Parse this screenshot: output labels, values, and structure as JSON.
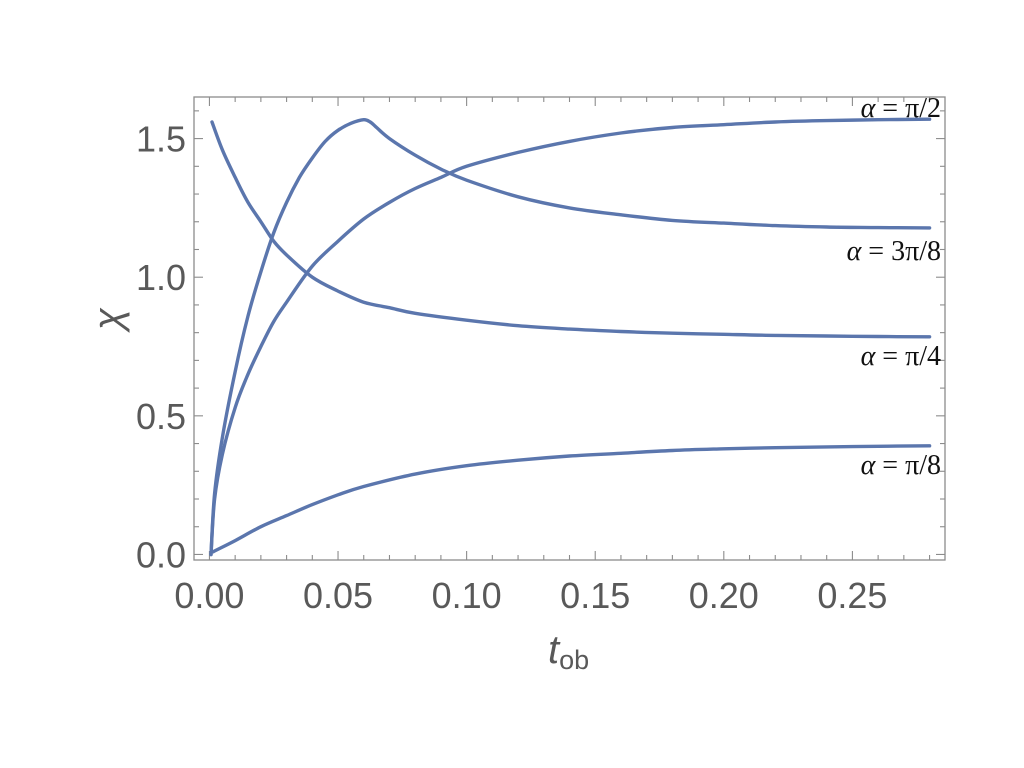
{
  "chart_data": {
    "type": "line",
    "xlabel": "t",
    "xlabel_sub": "ob",
    "ylabel": "χ",
    "xlim": [
      -0.006,
      0.286
    ],
    "ylim": [
      -0.02,
      1.65
    ],
    "x_ticks": [
      0.0,
      0.05,
      0.1,
      0.15,
      0.2,
      0.25
    ],
    "x_tick_labels": [
      "0.00",
      "0.05",
      "0.10",
      "0.15",
      "0.20",
      "0.25"
    ],
    "y_ticks": [
      0.0,
      0.5,
      1.0,
      1.5
    ],
    "y_tick_labels": [
      "0.0",
      "0.5",
      "1.0",
      "1.5"
    ],
    "grid": false,
    "color": "#5b76ad",
    "series": [
      {
        "name": "α = π/2",
        "label_parts": [
          "α",
          " = π/2"
        ],
        "x": [
          0.0006,
          0.002,
          0.005,
          0.01,
          0.015,
          0.02,
          0.025,
          0.03,
          0.04,
          0.05,
          0.06,
          0.07,
          0.08,
          0.09,
          0.1,
          0.12,
          0.14,
          0.16,
          0.18,
          0.2,
          0.22,
          0.24,
          0.26,
          0.28
        ],
        "y": [
          0.0,
          0.2,
          0.36,
          0.53,
          0.65,
          0.75,
          0.84,
          0.91,
          1.04,
          1.13,
          1.21,
          1.27,
          1.32,
          1.36,
          1.4,
          1.45,
          1.49,
          1.52,
          1.54,
          1.55,
          1.56,
          1.565,
          1.568,
          1.57
        ]
      },
      {
        "name": "α = 3π/8",
        "label_parts": [
          "α",
          " = 3π/8"
        ],
        "x": [
          0.0006,
          0.002,
          0.005,
          0.01,
          0.015,
          0.02,
          0.025,
          0.03,
          0.035,
          0.04,
          0.045,
          0.05,
          0.055,
          0.06,
          0.0625,
          0.065,
          0.07,
          0.08,
          0.09,
          0.1,
          0.12,
          0.14,
          0.16,
          0.18,
          0.2,
          0.22,
          0.24,
          0.26,
          0.28
        ],
        "y": [
          0.0,
          0.22,
          0.42,
          0.66,
          0.86,
          1.02,
          1.16,
          1.27,
          1.36,
          1.43,
          1.49,
          1.53,
          1.555,
          1.568,
          1.56,
          1.54,
          1.5,
          1.44,
          1.39,
          1.35,
          1.29,
          1.25,
          1.225,
          1.205,
          1.195,
          1.186,
          1.181,
          1.179,
          1.178
        ]
      },
      {
        "name": "α = π/4",
        "label_parts": [
          "α",
          " = π/4"
        ],
        "x": [
          0.001,
          0.005,
          0.01,
          0.015,
          0.02,
          0.025,
          0.03,
          0.04,
          0.05,
          0.06,
          0.07,
          0.08,
          0.1,
          0.12,
          0.14,
          0.16,
          0.18,
          0.2,
          0.22,
          0.24,
          0.26,
          0.28
        ],
        "y": [
          1.56,
          1.46,
          1.36,
          1.27,
          1.2,
          1.13,
          1.08,
          1.0,
          0.95,
          0.91,
          0.89,
          0.87,
          0.845,
          0.825,
          0.813,
          0.804,
          0.798,
          0.794,
          0.79,
          0.788,
          0.786,
          0.785
        ]
      },
      {
        "name": "α = π/8",
        "label_parts": [
          "α",
          " = π/8"
        ],
        "x": [
          0.0015,
          0.01,
          0.02,
          0.03,
          0.04,
          0.05,
          0.06,
          0.08,
          0.1,
          0.12,
          0.14,
          0.16,
          0.18,
          0.2,
          0.22,
          0.24,
          0.26,
          0.28
        ],
        "y": [
          0.01,
          0.05,
          0.1,
          0.14,
          0.18,
          0.215,
          0.245,
          0.29,
          0.32,
          0.34,
          0.355,
          0.365,
          0.375,
          0.381,
          0.385,
          0.388,
          0.39,
          0.392
        ]
      }
    ]
  }
}
